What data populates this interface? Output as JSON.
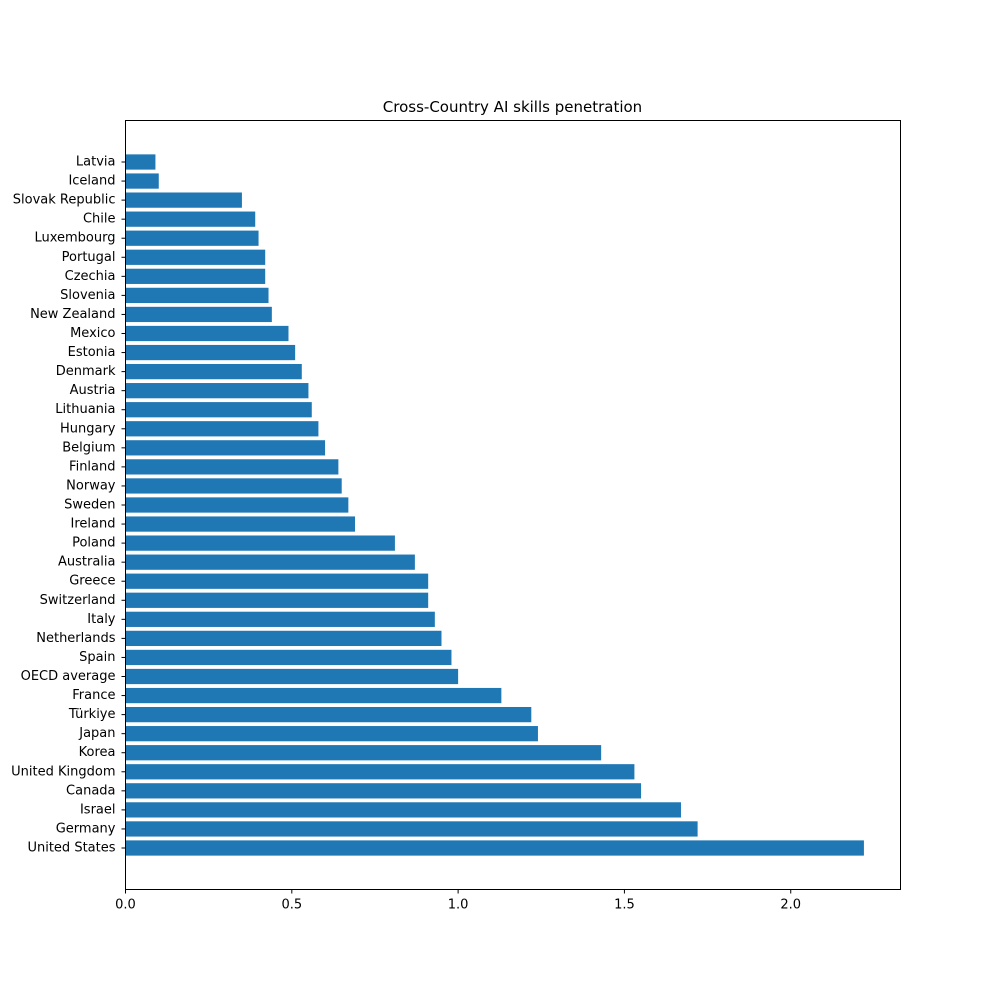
{
  "chart_data": {
    "type": "bar",
    "orientation": "horizontal",
    "title": "Cross-Country AI skills penetration",
    "xlabel": "",
    "ylabel": "",
    "xlim": [
      0,
      2.33
    ],
    "grid": false,
    "legend": "none",
    "bar_color": "#1f77b4",
    "x_ticks": [
      {
        "value": 0.0,
        "label": "0.0"
      },
      {
        "value": 0.5,
        "label": "0.5"
      },
      {
        "value": 1.0,
        "label": "1.0"
      },
      {
        "value": 1.5,
        "label": "1.5"
      },
      {
        "value": 2.0,
        "label": "2.0"
      }
    ],
    "categories": [
      "United States",
      "Germany",
      "Israel",
      "Canada",
      "United Kingdom",
      "Korea",
      "Japan",
      "Türkiye",
      "France",
      "OECD average",
      "Spain",
      "Netherlands",
      "Italy",
      "Switzerland",
      "Greece",
      "Australia",
      "Poland",
      "Ireland",
      "Sweden",
      "Norway",
      "Finland",
      "Belgium",
      "Hungary",
      "Lithuania",
      "Austria",
      "Denmark",
      "Estonia",
      "Mexico",
      "New Zealand",
      "Slovenia",
      "Czechia",
      "Portugal",
      "Luxembourg",
      "Chile",
      "Slovak Republic",
      "Iceland",
      "Latvia"
    ],
    "values": [
      2.22,
      1.72,
      1.67,
      1.55,
      1.53,
      1.43,
      1.24,
      1.22,
      1.13,
      1.0,
      0.98,
      0.95,
      0.93,
      0.91,
      0.91,
      0.87,
      0.81,
      0.69,
      0.67,
      0.65,
      0.64,
      0.6,
      0.58,
      0.56,
      0.55,
      0.53,
      0.51,
      0.49,
      0.44,
      0.43,
      0.42,
      0.42,
      0.4,
      0.39,
      0.35,
      0.1,
      0.09
    ]
  }
}
